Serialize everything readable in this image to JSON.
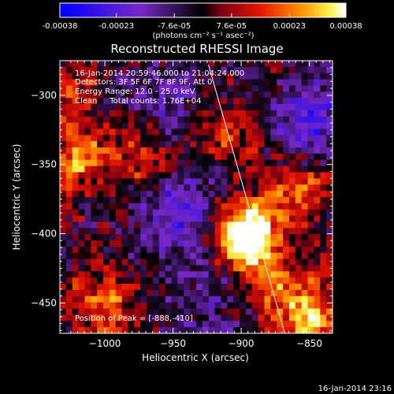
{
  "colorbar": {
    "tick_labels": [
      "-0.00038",
      "-0.00023",
      "-7.6e-05",
      "7.6e-05",
      "0.00023",
      "0.00038"
    ],
    "tick_values": [
      -0.00038,
      -0.00023,
      -7.6e-05,
      7.6e-05,
      0.00023,
      0.00038
    ],
    "range": [
      -0.00038,
      0.00038
    ],
    "unit_label": "(photons cm⁻² s⁻¹ asec⁻²)"
  },
  "chart_data": {
    "type": "heatmap",
    "title": "Reconstructed RHESSI Image",
    "xlabel": "Heliocentric X (arcsec)",
    "ylabel": "Heliocentric Y (arcsec)",
    "xlim": [
      -1033,
      -833
    ],
    "ylim": [
      -472,
      -275
    ],
    "x_ticks": [
      -1000,
      -950,
      -900,
      -850
    ],
    "x_tick_labels": [
      "−1000",
      "−950",
      "−900",
      "−850"
    ],
    "y_ticks": [
      -300,
      -350,
      -400,
      -450
    ],
    "y_tick_labels": [
      "−300",
      "−350",
      "−400",
      "−450"
    ],
    "annotations": [
      "16-Jan-2014 20:59:46.000 to 21:04:24.000",
      "Detectors: 3F 5F 6F 7F 8F 9F, Att 0",
      "Energy Range: 12.0 - 25.0 keV",
      "Clean     Total counts: 1.76E+04"
    ],
    "peak_label": "Position of Peak = [-888,-410]",
    "peak": [
      -888,
      -410
    ],
    "limb_line": [
      [
        -924,
        -278
      ],
      [
        -868,
        -472
      ]
    ],
    "sources": [
      {
        "x": -893,
        "y": -408,
        "intensity": 1.0
      },
      {
        "x": -900,
        "y": -395,
        "intensity": 0.85
      },
      {
        "x": -850,
        "y": -460,
        "intensity": 0.85
      },
      {
        "x": -1020,
        "y": -345,
        "intensity": 0.7
      },
      {
        "x": -1000,
        "y": -450,
        "intensity": 0.65
      },
      {
        "x": -860,
        "y": -368,
        "intensity": 0.7
      },
      {
        "x": -975,
        "y": -345,
        "intensity": 0.55
      },
      {
        "x": -870,
        "y": -440,
        "intensity": 0.55
      },
      {
        "x": -1025,
        "y": -300,
        "intensity": 0.45
      },
      {
        "x": -905,
        "y": -330,
        "intensity": 0.45
      }
    ],
    "negative_regions": [
      {
        "x": -945,
        "y": -385,
        "intensity": 0.9
      },
      {
        "x": -850,
        "y": -320,
        "intensity": 0.9
      },
      {
        "x": -960,
        "y": -300,
        "intensity": 0.5
      },
      {
        "x": -920,
        "y": -450,
        "intensity": 0.45
      }
    ]
  },
  "timestamp": "16-Jan-2014 23:16"
}
